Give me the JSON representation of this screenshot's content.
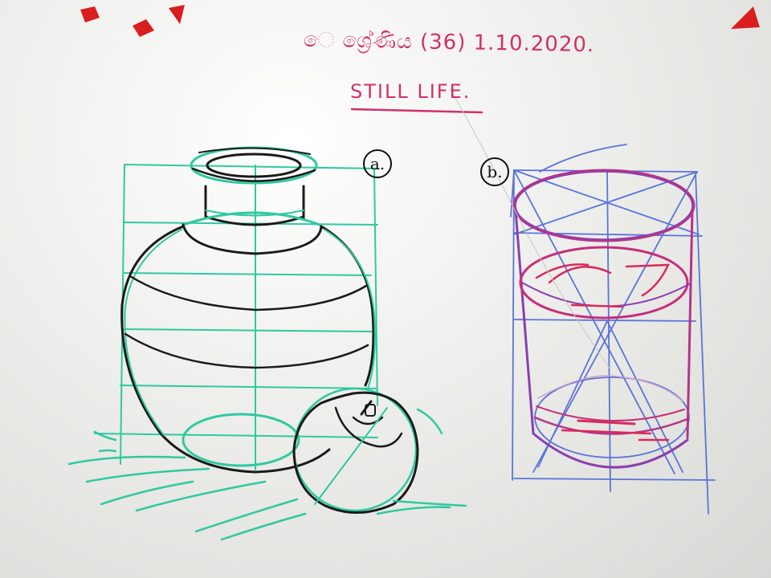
{
  "header": {
    "date_line": "ෙ ශ්‍රේණිය (36) 1.10.2020.",
    "title": "STILL LIFE."
  },
  "labels": {
    "drawing_a": "a.",
    "drawing_b": "b."
  },
  "colors": {
    "board": "#f1f1ef",
    "green_guide": "#2fc9a0",
    "black_ink": "#1a1a1a",
    "magenta_ink": "#c52e7c",
    "blue_guide": "#5a74d8",
    "purple_ink": "#8a3fb0",
    "red_magnet": "#d81e1e"
  }
}
